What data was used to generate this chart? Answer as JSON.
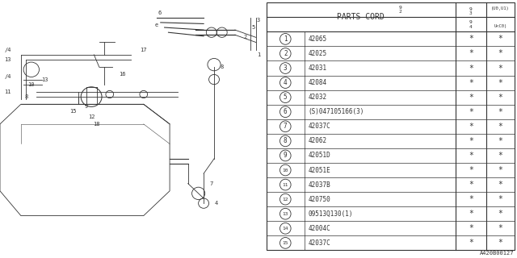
{
  "title": "PARTS CORD",
  "parts": [
    {
      "num": "1",
      "code": "42065"
    },
    {
      "num": "2",
      "code": "42025"
    },
    {
      "num": "3",
      "code": "42031"
    },
    {
      "num": "4",
      "code": "42084"
    },
    {
      "num": "5",
      "code": "42032"
    },
    {
      "num": "6",
      "code": "(S)047105166(3)"
    },
    {
      "num": "7",
      "code": "42037C"
    },
    {
      "num": "8",
      "code": "42062"
    },
    {
      "num": "9",
      "code": "42051D"
    },
    {
      "num": "10",
      "code": "42051E"
    },
    {
      "num": "11",
      "code": "42037B"
    },
    {
      "num": "12",
      "code": "420750"
    },
    {
      "num": "13",
      "code": "09513Q130(1)"
    },
    {
      "num": "14",
      "code": "42004C"
    },
    {
      "num": "15",
      "code": "42037C"
    }
  ],
  "header_lines": [
    [
      "9",
      "3",
      "(U0,U1)"
    ],
    [
      "9",
      "4",
      "U<C0)"
    ]
  ],
  "col92_label": "9\n2",
  "star": "*",
  "watermark": "A420B00127",
  "bg_color": "#ffffff",
  "lc": "#333333"
}
